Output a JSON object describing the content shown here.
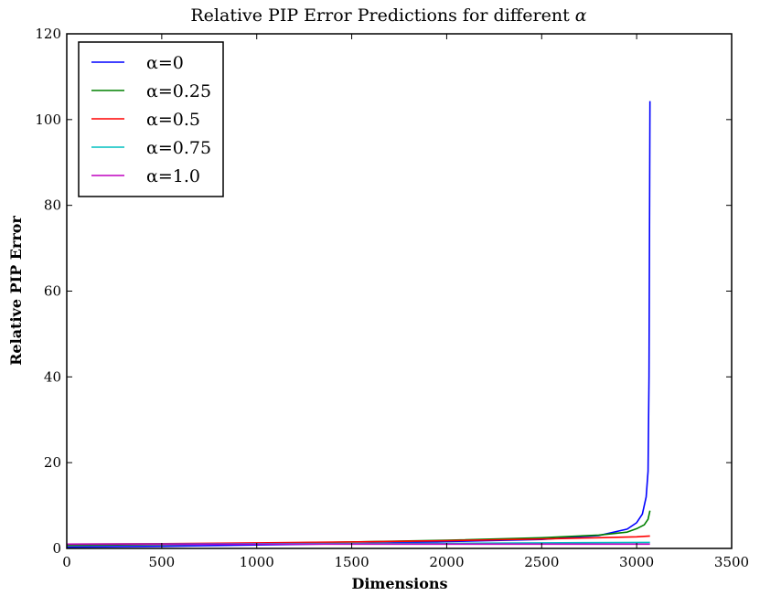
{
  "chart_data": {
    "type": "line",
    "title_prefix": "Relative PIP Error Predictions for different",
    "title_symbol": "α",
    "xlabel": "Dimensions",
    "ylabel": "Relative PIP Error",
    "xlim": [
      0,
      3500
    ],
    "ylim": [
      0,
      120
    ],
    "xticks": [
      0,
      500,
      1000,
      1500,
      2000,
      2500,
      3000,
      3500
    ],
    "yticks": [
      0,
      20,
      40,
      60,
      80,
      100,
      120
    ],
    "legend_position": "top-left",
    "series": [
      {
        "name": "α=0",
        "color": "#0000ff",
        "x": [
          0,
          500,
          1000,
          1500,
          2000,
          2500,
          2800,
          2950,
          3000,
          3030,
          3050,
          3060,
          3065,
          3070
        ],
        "y": [
          0.3,
          0.5,
          0.8,
          1.1,
          1.6,
          2.1,
          3.0,
          4.5,
          6.0,
          8.0,
          12.0,
          18.0,
          40.0,
          104.3
        ]
      },
      {
        "name": "α=0.25",
        "color": "#008000",
        "x": [
          0,
          500,
          1000,
          1500,
          2000,
          2500,
          2800,
          2950,
          3000,
          3040,
          3060,
          3070
        ],
        "y": [
          0.7,
          0.9,
          1.2,
          1.5,
          1.9,
          2.5,
          3.1,
          3.8,
          4.6,
          5.5,
          6.8,
          8.8
        ]
      },
      {
        "name": "α=0.5",
        "color": "#ff0000",
        "x": [
          0,
          500,
          1000,
          1500,
          2000,
          2500,
          2800,
          3000,
          3070
        ],
        "y": [
          1.0,
          1.1,
          1.3,
          1.5,
          1.8,
          2.2,
          2.5,
          2.7,
          2.9
        ]
      },
      {
        "name": "α=0.75",
        "color": "#00bfbf",
        "x": [
          0,
          500,
          1000,
          1500,
          2000,
          2500,
          3070
        ],
        "y": [
          1.0,
          1.05,
          1.1,
          1.15,
          1.2,
          1.3,
          1.4
        ]
      },
      {
        "name": "α=1.0",
        "color": "#bf00bf",
        "x": [
          0,
          500,
          1000,
          1500,
          2000,
          2500,
          3070
        ],
        "y": [
          1.0,
          1.0,
          1.0,
          1.0,
          1.0,
          1.0,
          1.0
        ]
      }
    ]
  }
}
